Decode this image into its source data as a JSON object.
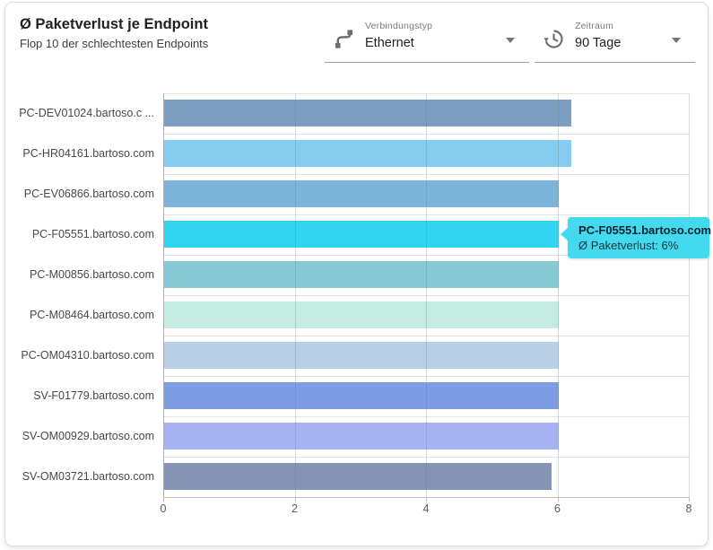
{
  "header": {
    "title": "Ø Paketverlust je Endpoint",
    "subtitle": "Flop 10 der schlechtesten Endpoints"
  },
  "filters": {
    "connection_type": {
      "label": "Verbindungstyp",
      "value": "Ethernet",
      "icon": "cable-icon"
    },
    "period": {
      "label": "Zeitraum",
      "value": "90 Tage",
      "icon": "history-icon"
    }
  },
  "tooltip": {
    "title": "PC-F05551.bartoso.com",
    "line": "Ø Paketverlust: 6%",
    "bg": "#43d9ef"
  },
  "chart_data": {
    "type": "bar",
    "orientation": "horizontal",
    "title": "Ø Paketverlust je Endpoint",
    "subtitle": "Flop 10 der schlechtesten Endpoints",
    "categories": [
      "PC-DEV01024.bartoso.c ...",
      "PC-HR04161.bartoso.com",
      "PC-EV06866.bartoso.com",
      "PC-F05551.bartoso.com",
      "PC-M00856.bartoso.com",
      "PC-M08464.bartoso.com",
      "PC-OM04310.bartoso.com",
      "SV-F01779.bartoso.com",
      "SV-OM00929.bartoso.com",
      "SV-OM03721.bartoso.com"
    ],
    "values": [
      6.2,
      6.2,
      6.0,
      6.0,
      6.0,
      6.0,
      6.0,
      6.0,
      6.0,
      5.9
    ],
    "unit": "%",
    "bar_colors": [
      "#7d9ec0",
      "#86ccee",
      "#7db4d9",
      "#31d5f2",
      "#87c9d4",
      "#c3ebe1",
      "#b9cfe6",
      "#7e9ce3",
      "#a6b2f2",
      "#8593b4"
    ],
    "highlight_index": 3,
    "xlim": [
      0,
      8
    ],
    "x_ticks": [
      "0",
      "2",
      "4",
      "6",
      "8"
    ],
    "grid": true,
    "legend": false,
    "xlabel": "",
    "ylabel": ""
  }
}
